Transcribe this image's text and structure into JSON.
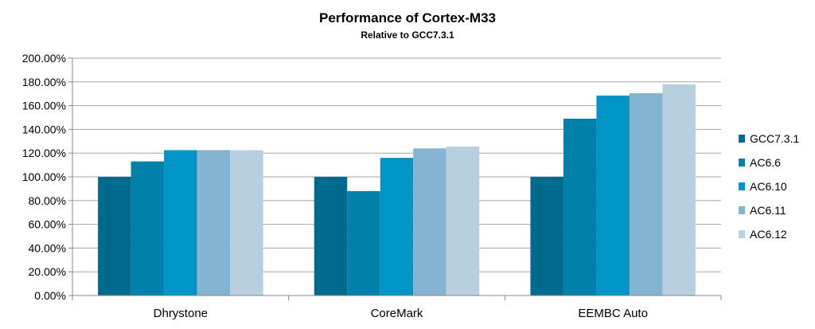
{
  "chart_data": {
    "type": "bar",
    "title": "Performance of Cortex-M33",
    "subtitle": "Relative to GCC7.3.1",
    "categories": [
      "Dhrystone",
      "CoreMark",
      "EEMBC Auto"
    ],
    "series": [
      {
        "name": "GCC7.3.1",
        "color": "#006a8c",
        "values": [
          100,
          100,
          100
        ]
      },
      {
        "name": "AC6.6",
        "color": "#0080aa",
        "values": [
          113,
          88,
          149
        ]
      },
      {
        "name": "AC6.10",
        "color": "#0095c4",
        "values": [
          122.5,
          116,
          168.5
        ]
      },
      {
        "name": "AC6.11",
        "color": "#85b4d0",
        "values": [
          122.5,
          124,
          170.5
        ]
      },
      {
        "name": "AC6.12",
        "color": "#b8cfe0",
        "values": [
          122.5,
          125.5,
          178
        ]
      }
    ],
    "ylim": [
      0,
      200
    ],
    "yticks": [
      "0.00%",
      "20.00%",
      "40.00%",
      "60.00%",
      "80.00%",
      "100.00%",
      "120.00%",
      "140.00%",
      "160.00%",
      "180.00%",
      "200.00%"
    ],
    "grid": true,
    "legend_position": "right"
  }
}
